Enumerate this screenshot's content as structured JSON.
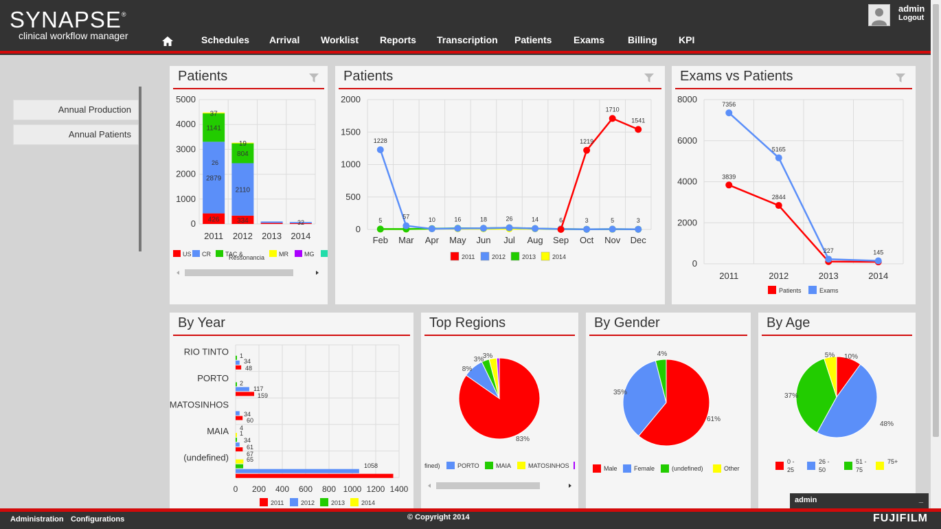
{
  "brand": {
    "title": "SYNAPSE",
    "reg": "®",
    "subtitle": "clinical workflow manager"
  },
  "nav": [
    "Schedules",
    "Arrival",
    "Worklist",
    "Reports",
    "Transcription",
    "Patients",
    "Exams",
    "Billing",
    "KPI"
  ],
  "user": {
    "name": "admin",
    "logout": "Logout"
  },
  "sidebar": [
    "Annual Production",
    "Annual Patients"
  ],
  "panels": {
    "patients_bar": "Patients",
    "patients_line": "Patients",
    "exams_vs_patients": "Exams vs Patients",
    "by_year": "By Year",
    "top_regions": "Top Regions",
    "by_gender": "By Gender",
    "by_age": "By Age"
  },
  "colors": {
    "red": "#ff0000",
    "blue": "#5b8ff9",
    "green": "#22cc00",
    "yellow": "#ffff00",
    "purple": "#aa00ff",
    "accent": "#d20a0a"
  },
  "chart_data": [
    {
      "type": "bar",
      "stacked": true,
      "categories": [
        "2011",
        "2012",
        "2013",
        "2014"
      ],
      "ylim": [
        0,
        5000
      ],
      "yticks": [
        "0",
        "1000",
        "2000",
        "3000",
        "4000",
        "5000"
      ],
      "series": [
        {
          "name": "US",
          "values": [
            426,
            334,
            40,
            30
          ],
          "labels": [
            "426",
            "334",
            "",
            ""
          ]
        },
        {
          "name": "CR",
          "values": [
            2879,
            2110,
            60,
            50
          ],
          "labels": [
            "2879",
            "2110",
            "",
            ""
          ]
        },
        {
          "name": "TAC & Ressonancia",
          "values": [
            1141,
            804,
            0,
            0
          ],
          "labels": [
            "1141",
            "804",
            "",
            ""
          ]
        },
        {
          "name": "MR",
          "values": [
            37,
            19,
            0,
            0
          ],
          "labels": [
            "37",
            "19",
            "",
            ""
          ]
        }
      ],
      "small_labels": [
        "26",
        "32"
      ],
      "legend": [
        "US",
        "CR",
        "TAC &",
        "Ressonancia",
        "MR",
        "MG"
      ]
    },
    {
      "type": "line",
      "categories": [
        "Feb",
        "Mar",
        "Apr",
        "May",
        "Jun",
        "Jul",
        "Aug",
        "Sep",
        "Oct",
        "Nov",
        "Dec"
      ],
      "ylim": [
        0,
        2000
      ],
      "yticks": [
        "0",
        "500",
        "1000",
        "1500",
        "2000"
      ],
      "series": [
        {
          "name": "2011",
          "values": [
            0,
            0,
            0,
            0,
            0,
            0,
            0,
            0,
            1219,
            1710,
            1541
          ]
        },
        {
          "name": "2012",
          "values": [
            1228,
            57,
            10,
            16,
            18,
            26,
            14,
            6,
            3,
            5,
            3
          ]
        },
        {
          "name": "2013",
          "values": [
            6,
            6,
            13,
            18,
            18,
            26,
            14,
            6,
            3,
            5,
            3
          ]
        },
        {
          "name": "2014",
          "values": [
            5,
            5,
            10,
            10,
            10,
            10,
            10,
            5,
            3,
            3,
            3
          ]
        }
      ],
      "point_labels": [
        "1228",
        "57",
        "10",
        "16",
        "18",
        "26",
        "14",
        "6",
        "1219",
        "1710",
        "1541",
        "5",
        "3",
        "5",
        "3"
      ]
    },
    {
      "type": "line",
      "categories": [
        "2011",
        "2012",
        "2013",
        "2014"
      ],
      "ylim": [
        0,
        8000
      ],
      "yticks": [
        "0",
        "2000",
        "4000",
        "6000",
        "8000"
      ],
      "series": [
        {
          "name": "Patients",
          "values": [
            3839,
            2844,
            110,
            95
          ]
        },
        {
          "name": "Exams",
          "values": [
            7356,
            5165,
            227,
            145
          ]
        }
      ],
      "point_labels": [
        "7356",
        "3839",
        "5165",
        "2844",
        "227",
        "145"
      ]
    },
    {
      "type": "bar",
      "orientation": "horizontal",
      "categories": [
        "RIO TINTO",
        "PORTO",
        "MATOSINHOS",
        "MAIA",
        "(undefined)"
      ],
      "xlim": [
        0,
        1400
      ],
      "xticks": [
        "0",
        "200",
        "400",
        "600",
        "800",
        "1000",
        "1200",
        "1400"
      ],
      "series": [
        {
          "name": "2011",
          "values": [
            48,
            159,
            60,
            61,
            1350
          ]
        },
        {
          "name": "2012",
          "values": [
            34,
            117,
            34,
            34,
            1058
          ]
        },
        {
          "name": "2013",
          "values": [
            1,
            2,
            0,
            1,
            65
          ]
        },
        {
          "name": "2014",
          "values": [
            0,
            0,
            0,
            4,
            67
          ]
        }
      ],
      "labels": [
        "1",
        "34",
        "48",
        "2",
        "117",
        "159",
        "34",
        "60",
        "4",
        "1",
        "34",
        "61",
        "67",
        "65",
        "1058"
      ]
    },
    {
      "type": "pie",
      "slices": [
        {
          "label": "83%",
          "value": 83
        },
        {
          "label": "8%",
          "value": 8
        },
        {
          "label": "3%",
          "value": 3
        },
        {
          "label": "3%",
          "value": 3
        },
        {
          "label": "",
          "value": 1
        }
      ],
      "legend": [
        "fined)",
        "PORTO",
        "MAIA",
        "MATOSINHOS"
      ]
    },
    {
      "type": "pie",
      "slices": [
        {
          "name": "Male",
          "label": "61%",
          "value": 61
        },
        {
          "name": "Female",
          "label": "35%",
          "value": 35
        },
        {
          "name": "(undefined)",
          "label": "4%",
          "value": 4
        },
        {
          "name": "Other",
          "label": "",
          "value": 0
        }
      ]
    },
    {
      "type": "pie",
      "slices": [
        {
          "name": "0 - 25",
          "label": "10%",
          "value": 10
        },
        {
          "name": "26 - 50",
          "label": "48%",
          "value": 48
        },
        {
          "name": "51 - 75",
          "label": "37%",
          "value": 37
        },
        {
          "name": "75+",
          "label": "5%",
          "value": 5
        }
      ],
      "legend_lines": [
        [
          "0 -",
          "25"
        ],
        [
          "26 -",
          "50"
        ],
        [
          "51 -",
          "75"
        ],
        [
          "75+",
          ""
        ]
      ]
    }
  ],
  "footer": {
    "administration": "Administration",
    "configurations": "Configurations",
    "copyright": "© Copyright 2014",
    "brand": "FUJIFILM"
  },
  "chat": {
    "user": "admin",
    "minimize": "_"
  }
}
